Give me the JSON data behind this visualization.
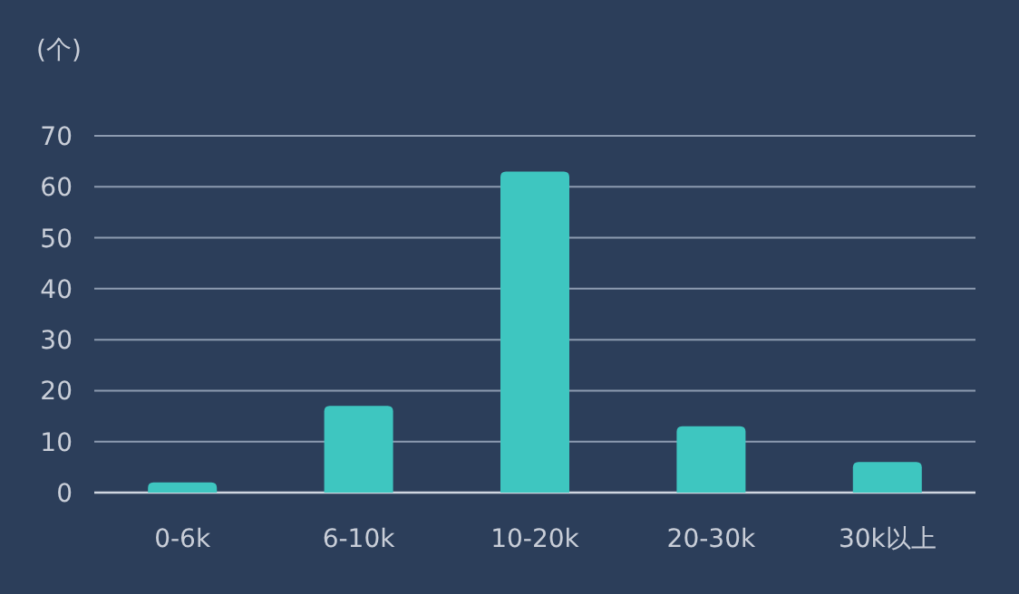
{
  "chart_data": {
    "type": "bar",
    "ylabel": "(个)",
    "categories": [
      "0-6k",
      "6-10k",
      "10-20k",
      "20-30k",
      "30k以上"
    ],
    "values": [
      2,
      17,
      63,
      13,
      6
    ],
    "color": "#3ec6c0",
    "ylim": [
      0,
      70
    ],
    "yticks": [
      0,
      10,
      20,
      30,
      40,
      50,
      60,
      70
    ],
    "grid": "y"
  }
}
